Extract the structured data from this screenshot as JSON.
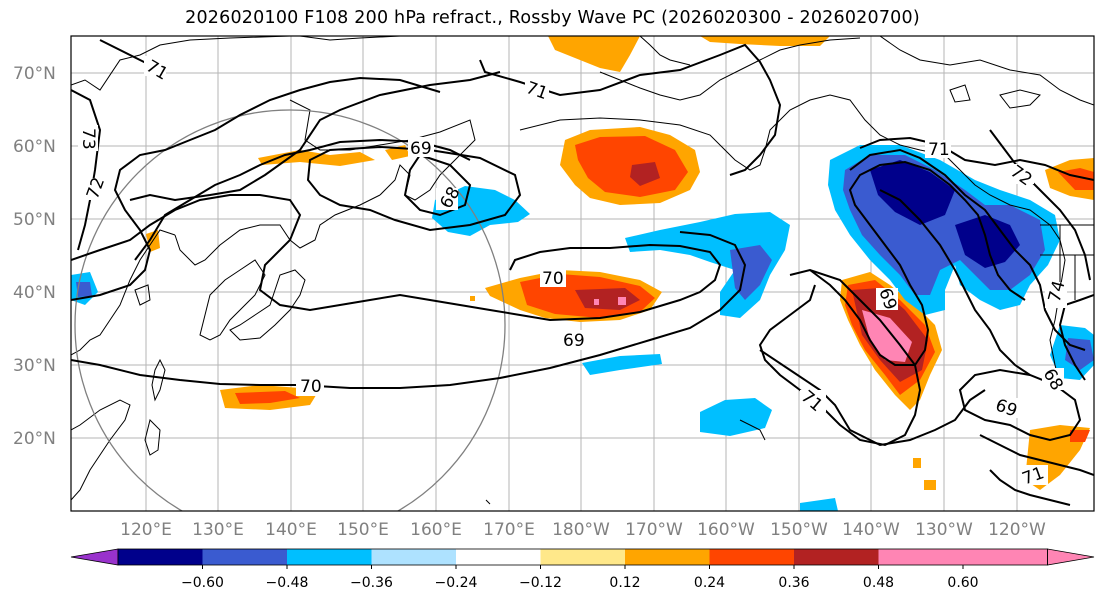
{
  "title": "2026020100 F108 200 hPa refract., Rossby Wave PC (2026020300 - 2026020700)",
  "axes": {
    "lat_labels": [
      "70°N",
      "60°N",
      "50°N",
      "40°N",
      "30°N",
      "20°N"
    ],
    "lon_labels": [
      "120°E",
      "130°E",
      "140°E",
      "150°E",
      "160°E",
      "170°E",
      "180°W",
      "170°W",
      "160°W",
      "150°W",
      "140°W",
      "130°W",
      "120°W"
    ]
  },
  "colorbar": {
    "ticks": [
      "−0.60",
      "−0.48",
      "−0.36",
      "−0.24",
      "−0.12",
      "0.12",
      "0.24",
      "0.36",
      "0.48",
      "0.60"
    ],
    "colors": [
      "#9932cc",
      "#00008b",
      "#3a5bd0",
      "#00bfff",
      "#aee2ff",
      "#ffffff",
      "#ffe88a",
      "#ffa500",
      "#ff4500",
      "#b22222",
      "#ff85b4"
    ]
  },
  "contour_labels": [
    "71",
    "71",
    "73",
    "72",
    "69",
    "68",
    "70",
    "69",
    "70",
    "71",
    "71",
    "72",
    "74",
    "69",
    "71",
    "69",
    "68"
  ]
}
